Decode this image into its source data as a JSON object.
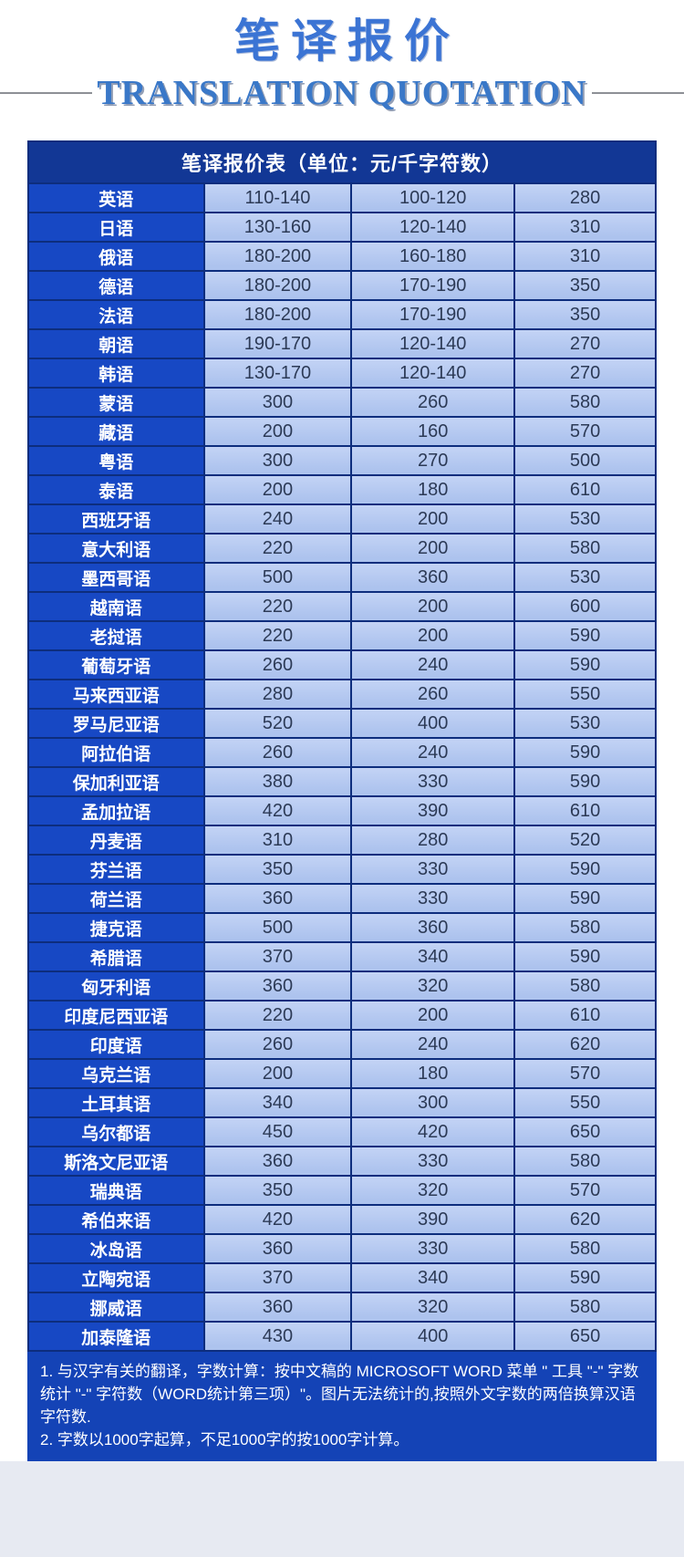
{
  "page": {
    "title": "笔译报价",
    "subtitle": "TRANSLATION QUOTATION"
  },
  "table": {
    "header": "笔译报价表（单位：元/千字符数）",
    "rows": [
      {
        "language": "英语",
        "prices": [
          "110-140",
          "100-120",
          "280"
        ]
      },
      {
        "language": "日语",
        "prices": [
          "130-160",
          "120-140",
          "310"
        ]
      },
      {
        "language": "俄语",
        "prices": [
          "180-200",
          "160-180",
          "310"
        ]
      },
      {
        "language": "德语",
        "prices": [
          "180-200",
          "170-190",
          "350"
        ]
      },
      {
        "language": "法语",
        "prices": [
          "180-200",
          "170-190",
          "350"
        ]
      },
      {
        "language": "朝语",
        "prices": [
          "190-170",
          "120-140",
          "270"
        ]
      },
      {
        "language": "韩语",
        "prices": [
          "130-170",
          "120-140",
          "270"
        ]
      },
      {
        "language": "蒙语",
        "prices": [
          "300",
          "260",
          "580"
        ]
      },
      {
        "language": "藏语",
        "prices": [
          "200",
          "160",
          "570"
        ]
      },
      {
        "language": "粤语",
        "prices": [
          "300",
          "270",
          "500"
        ]
      },
      {
        "language": "泰语",
        "prices": [
          "200",
          "180",
          "610"
        ]
      },
      {
        "language": "西班牙语",
        "prices": [
          "240",
          "200",
          "530"
        ]
      },
      {
        "language": "意大利语",
        "prices": [
          "220",
          "200",
          "580"
        ]
      },
      {
        "language": "墨西哥语",
        "prices": [
          "500",
          "360",
          "530"
        ]
      },
      {
        "language": "越南语",
        "prices": [
          "220",
          "200",
          "600"
        ]
      },
      {
        "language": "老挝语",
        "prices": [
          "220",
          "200",
          "590"
        ]
      },
      {
        "language": "葡萄牙语",
        "prices": [
          "260",
          "240",
          "590"
        ]
      },
      {
        "language": "马来西亚语",
        "prices": [
          "280",
          "260",
          "550"
        ]
      },
      {
        "language": "罗马尼亚语",
        "prices": [
          "520",
          "400",
          "530"
        ]
      },
      {
        "language": "阿拉伯语",
        "prices": [
          "260",
          "240",
          "590"
        ]
      },
      {
        "language": "保加利亚语",
        "prices": [
          "380",
          "330",
          "590"
        ]
      },
      {
        "language": "孟加拉语",
        "prices": [
          "420",
          "390",
          "610"
        ]
      },
      {
        "language": "丹麦语",
        "prices": [
          "310",
          "280",
          "520"
        ]
      },
      {
        "language": "芬兰语",
        "prices": [
          "350",
          "330",
          "590"
        ]
      },
      {
        "language": "荷兰语",
        "prices": [
          "360",
          "330",
          "590"
        ]
      },
      {
        "language": "捷克语",
        "prices": [
          "500",
          "360",
          "580"
        ]
      },
      {
        "language": "希腊语",
        "prices": [
          "370",
          "340",
          "590"
        ]
      },
      {
        "language": "匈牙利语",
        "prices": [
          "360",
          "320",
          "580"
        ]
      },
      {
        "language": "印度尼西亚语",
        "prices": [
          "220",
          "200",
          "610"
        ]
      },
      {
        "language": "印度语",
        "prices": [
          "260",
          "240",
          "620"
        ]
      },
      {
        "language": "乌克兰语",
        "prices": [
          "200",
          "180",
          "570"
        ]
      },
      {
        "language": "土耳其语",
        "prices": [
          "340",
          "300",
          "550"
        ]
      },
      {
        "language": "乌尔都语",
        "prices": [
          "450",
          "420",
          "650"
        ]
      },
      {
        "language": "斯洛文尼亚语",
        "prices": [
          "360",
          "330",
          "580"
        ]
      },
      {
        "language": "瑞典语",
        "prices": [
          "350",
          "320",
          "570"
        ]
      },
      {
        "language": "希伯来语",
        "prices": [
          "420",
          "390",
          "620"
        ]
      },
      {
        "language": "冰岛语",
        "prices": [
          "360",
          "330",
          "580"
        ]
      },
      {
        "language": "立陶宛语",
        "prices": [
          "370",
          "340",
          "590"
        ]
      },
      {
        "language": "挪威语",
        "prices": [
          "360",
          "320",
          "580"
        ]
      },
      {
        "language": "加泰隆语",
        "prices": [
          "430",
          "400",
          "650"
        ]
      }
    ]
  },
  "notes": [
    "1. 与汉字有关的翻译，字数计算：按中文稿的 MICROSOFT WORD 菜单 \" 工具 \"-\" 字数统计 \"-\" 字符数（WORD统计第三项）\"。图片无法统计的,按照外文字数的两倍换算汉语字符数.",
    "2. 字数以1000字起算，不足1000字的按1000字计算。"
  ],
  "colors": {
    "title_blue": "#3b74d4",
    "subtitle_blue": "#3a78c8",
    "divider_gray": "#8d9096",
    "header_bg": "#123795",
    "lang_cell_bg": "#1748c4",
    "value_cell_bg_top": "#c3d3f5",
    "value_cell_bg_bottom": "#adc3ee",
    "value_text": "#2c3a56",
    "border_navy": "#0d2d7d",
    "notes_bg": "#1443b6",
    "bottom_strip": "#e7eaf2"
  }
}
